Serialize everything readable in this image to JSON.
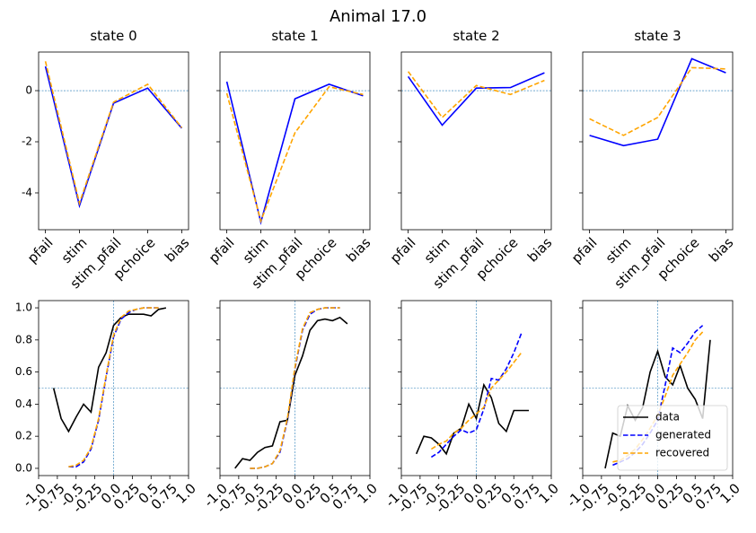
{
  "title": "Animal 17.0",
  "chart_data": [
    {
      "type": "line",
      "title": "state 0",
      "categories": [
        "pfail",
        "stim",
        "stim_pfail",
        "pchoice",
        "bias"
      ],
      "series": [
        {
          "color": "#0000ff",
          "dash": false,
          "values": [
            0.95,
            -4.5,
            -0.49,
            0.1,
            -1.47
          ]
        },
        {
          "color": "#ffa500",
          "dash": true,
          "values": [
            1.15,
            -4.4,
            -0.45,
            0.25,
            -1.45
          ]
        }
      ],
      "ylim": [
        -5.44,
        1.51
      ],
      "yticks": [
        -4,
        -2,
        0
      ],
      "ytick_labels": true,
      "hline": 0
    },
    {
      "type": "line",
      "title": "state 1",
      "categories": [
        "pfail",
        "stim",
        "stim_pfail",
        "pchoice",
        "bias"
      ],
      "series": [
        {
          "color": "#0000ff",
          "dash": false,
          "values": [
            0.35,
            -5.15,
            -0.32,
            0.25,
            -0.2
          ]
        },
        {
          "color": "#ffa500",
          "dash": true,
          "values": [
            -0.1,
            -5.1,
            -1.65,
            0.15,
            -0.15
          ]
        }
      ],
      "ylim": [
        -5.44,
        1.51
      ],
      "yticks": [
        -4,
        -2,
        0
      ],
      "ytick_labels": false,
      "hline": 0
    },
    {
      "type": "line",
      "title": "state 2",
      "categories": [
        "pfail",
        "stim",
        "stim_pfail",
        "pchoice",
        "bias"
      ],
      "series": [
        {
          "color": "#0000ff",
          "dash": false,
          "values": [
            0.55,
            -1.35,
            0.1,
            0.12,
            0.7
          ]
        },
        {
          "color": "#ffa500",
          "dash": true,
          "values": [
            0.75,
            -1.05,
            0.2,
            -0.15,
            0.4
          ]
        }
      ],
      "ylim": [
        -5.44,
        1.51
      ],
      "yticks": [
        -4,
        -2,
        0
      ],
      "ytick_labels": false,
      "hline": 0
    },
    {
      "type": "line",
      "title": "state 3",
      "categories": [
        "pfail",
        "stim",
        "stim_pfail",
        "pchoice",
        "bias"
      ],
      "series": [
        {
          "color": "#0000ff",
          "dash": false,
          "values": [
            -1.75,
            -2.15,
            -1.9,
            1.25,
            0.7
          ]
        },
        {
          "color": "#ffa500",
          "dash": true,
          "values": [
            -1.1,
            -1.75,
            -1.05,
            0.9,
            0.85
          ]
        }
      ],
      "ylim": [
        -5.44,
        1.51
      ],
      "yticks": [
        -4,
        -2,
        0
      ],
      "ytick_labels": false,
      "hline": 0
    },
    {
      "type": "curve",
      "series": [
        {
          "color": "#000000",
          "dash": false,
          "x": [
            -0.8,
            -0.7,
            -0.6,
            -0.5,
            -0.4,
            -0.3,
            -0.2,
            -0.1,
            0,
            0.1,
            0.2,
            0.3,
            0.4,
            0.5,
            0.6,
            0.7
          ],
          "values": [
            0.5,
            0.31,
            0.23,
            0.32,
            0.4,
            0.35,
            0.63,
            0.72,
            0.89,
            0.94,
            0.96,
            0.96,
            0.96,
            0.95,
            0.99,
            1.0
          ]
        },
        {
          "color": "#0000ff",
          "dash": true,
          "x": [
            -0.6,
            -0.5,
            -0.4,
            -0.3,
            -0.2,
            -0.1,
            0,
            0.1,
            0.2,
            0.3,
            0.4,
            0.5,
            0.6
          ],
          "values": [
            0.01,
            0.01,
            0.04,
            0.12,
            0.3,
            0.57,
            0.82,
            0.93,
            0.97,
            0.99,
            1.0,
            1.0,
            1.0
          ]
        },
        {
          "color": "#ffa500",
          "dash": true,
          "x": [
            -0.6,
            -0.5,
            -0.4,
            -0.3,
            -0.2,
            -0.1,
            0,
            0.1,
            0.2,
            0.3,
            0.4,
            0.5,
            0.6
          ],
          "values": [
            0.01,
            0.02,
            0.05,
            0.13,
            0.31,
            0.58,
            0.83,
            0.94,
            0.98,
            0.99,
            1.0,
            1.0,
            1.0
          ]
        }
      ],
      "xlim": [
        -1.0,
        1.0
      ],
      "ylim": [
        -0.045,
        1.045
      ],
      "xticks": [
        {
          "value": -1.0,
          "label": "-1.0"
        },
        -0.75,
        -0.5,
        -0.25,
        {
          "value": 0,
          "label": "0.0"
        },
        0.25,
        0.5,
        0.75,
        {
          "value": 1.0,
          "label": "1.0"
        }
      ],
      "yticks": [
        {
          "value": 0,
          "label": "0.0"
        },
        0.2,
        0.4,
        0.6,
        0.8,
        {
          "value": 1.0,
          "label": "1.0"
        }
      ],
      "ytick_labels": true,
      "hline": 0.5,
      "vline": 0
    },
    {
      "type": "curve",
      "series": [
        {
          "color": "#000000",
          "dash": false,
          "x": [
            -0.8,
            -0.7,
            -0.6,
            -0.5,
            -0.4,
            -0.3,
            -0.2,
            -0.1,
            0,
            0.1,
            0.2,
            0.3,
            0.4,
            0.5,
            0.6,
            0.7
          ],
          "values": [
            0.0,
            0.06,
            0.05,
            0.1,
            0.13,
            0.14,
            0.29,
            0.3,
            0.58,
            0.7,
            0.86,
            0.92,
            0.93,
            0.92,
            0.94,
            0.9
          ]
        },
        {
          "color": "#0000ff",
          "dash": true,
          "x": [
            -0.6,
            -0.5,
            -0.4,
            -0.3,
            -0.2,
            -0.1,
            0,
            0.1,
            0.2,
            0.3,
            0.4,
            0.5,
            0.6
          ],
          "values": [
            0.0,
            0.0,
            0.01,
            0.03,
            0.1,
            0.3,
            0.62,
            0.86,
            0.96,
            0.99,
            1.0,
            1.0,
            1.0
          ]
        },
        {
          "color": "#ffa500",
          "dash": true,
          "x": [
            -0.6,
            -0.5,
            -0.4,
            -0.3,
            -0.2,
            -0.1,
            0,
            0.1,
            0.2,
            0.3,
            0.4,
            0.5,
            0.6
          ],
          "values": [
            0.0,
            0.0,
            0.01,
            0.03,
            0.11,
            0.31,
            0.63,
            0.87,
            0.97,
            0.99,
            1.0,
            1.0,
            1.0
          ]
        }
      ],
      "xlim": [
        -1.0,
        1.0
      ],
      "ylim": [
        -0.045,
        1.045
      ],
      "xticks": [
        {
          "value": -1.0,
          "label": "-1.0"
        },
        -0.75,
        -0.5,
        -0.25,
        {
          "value": 0,
          "label": "0.0"
        },
        0.25,
        0.5,
        0.75,
        {
          "value": 1.0,
          "label": "1.0"
        }
      ],
      "yticks": [
        {
          "value": 0,
          "label": "0.0"
        },
        0.2,
        0.4,
        0.6,
        0.8,
        {
          "value": 1.0,
          "label": "1.0"
        }
      ],
      "ytick_labels": false,
      "hline": 0.5,
      "vline": 0
    },
    {
      "type": "curve",
      "series": [
        {
          "color": "#000000",
          "dash": false,
          "x": [
            -0.8,
            -0.7,
            -0.6,
            -0.5,
            -0.4,
            -0.3,
            -0.2,
            -0.1,
            0,
            0.1,
            0.2,
            0.3,
            0.4,
            0.5,
            0.6,
            0.7
          ],
          "values": [
            0.09,
            0.2,
            0.19,
            0.15,
            0.09,
            0.22,
            0.25,
            0.4,
            0.31,
            0.52,
            0.44,
            0.28,
            0.23,
            0.36,
            0.36,
            0.36
          ]
        },
        {
          "color": "#0000ff",
          "dash": true,
          "x": [
            -0.6,
            -0.5,
            -0.4,
            -0.3,
            -0.2,
            -0.1,
            0,
            0.1,
            0.2,
            0.3,
            0.4,
            0.5,
            0.6
          ],
          "values": [
            0.07,
            0.1,
            0.15,
            0.2,
            0.24,
            0.22,
            0.24,
            0.37,
            0.56,
            0.55,
            0.62,
            0.72,
            0.84
          ]
        },
        {
          "color": "#ffa500",
          "dash": true,
          "x": [
            -0.6,
            -0.5,
            -0.4,
            -0.3,
            -0.2,
            -0.1,
            0,
            0.1,
            0.2,
            0.3,
            0.4,
            0.5,
            0.6
          ],
          "values": [
            0.12,
            0.15,
            0.17,
            0.22,
            0.25,
            0.3,
            0.34,
            0.38,
            0.5,
            0.55,
            0.6,
            0.66,
            0.72
          ]
        }
      ],
      "xlim": [
        -1.0,
        1.0
      ],
      "ylim": [
        -0.045,
        1.045
      ],
      "xticks": [
        {
          "value": -1.0,
          "label": "-1.0"
        },
        -0.75,
        -0.5,
        -0.25,
        {
          "value": 0,
          "label": "0.0"
        },
        0.25,
        0.5,
        0.75,
        {
          "value": 1.0,
          "label": "1.0"
        }
      ],
      "yticks": [
        {
          "value": 0,
          "label": "0.0"
        },
        0.2,
        0.4,
        0.6,
        0.8,
        {
          "value": 1.0,
          "label": "1.0"
        }
      ],
      "ytick_labels": false,
      "hline": 0.5,
      "vline": 0
    },
    {
      "type": "curve",
      "series": [
        {
          "name": "data",
          "color": "#000000",
          "dash": false,
          "x": [
            -0.7,
            -0.6,
            -0.5,
            -0.4,
            -0.3,
            -0.2,
            -0.1,
            0,
            0.1,
            0.2,
            0.3,
            0.4,
            0.5,
            0.6,
            0.7
          ],
          "values": [
            0.0,
            0.22,
            0.2,
            0.39,
            0.3,
            0.38,
            0.6,
            0.73,
            0.57,
            0.52,
            0.64,
            0.5,
            0.43,
            0.31,
            0.8
          ]
        },
        {
          "name": "generated",
          "color": "#0000ff",
          "dash": true,
          "x": [
            -0.6,
            -0.5,
            -0.4,
            -0.3,
            -0.2,
            -0.1,
            0,
            0.1,
            0.2,
            0.3,
            0.4,
            0.5,
            0.6
          ],
          "values": [
            0.02,
            0.04,
            0.06,
            0.1,
            0.15,
            0.22,
            0.3,
            0.52,
            0.75,
            0.72,
            0.78,
            0.85,
            0.89
          ]
        },
        {
          "name": "recovered",
          "color": "#ffa500",
          "dash": true,
          "x": [
            -0.6,
            -0.5,
            -0.4,
            -0.3,
            -0.2,
            -0.1,
            0,
            0.1,
            0.2,
            0.3,
            0.4,
            0.5,
            0.6
          ],
          "values": [
            0.04,
            0.05,
            0.08,
            0.12,
            0.18,
            0.25,
            0.33,
            0.45,
            0.58,
            0.65,
            0.72,
            0.8,
            0.85
          ]
        }
      ],
      "xlim": [
        -1.0,
        1.0
      ],
      "ylim": [
        -0.045,
        1.045
      ],
      "xticks": [
        {
          "value": -1.0,
          "label": "-1.0"
        },
        -0.75,
        -0.5,
        -0.25,
        {
          "value": 0,
          "label": "0.0"
        },
        0.25,
        0.5,
        0.75,
        {
          "value": 1.0,
          "label": "1.0"
        }
      ],
      "yticks": [
        {
          "value": 0,
          "label": "0.0"
        },
        0.2,
        0.4,
        0.6,
        0.8,
        {
          "value": 1.0,
          "label": "1.0"
        }
      ],
      "ytick_labels": false,
      "hline": 0.5,
      "vline": 0,
      "legend": "lower right"
    }
  ]
}
